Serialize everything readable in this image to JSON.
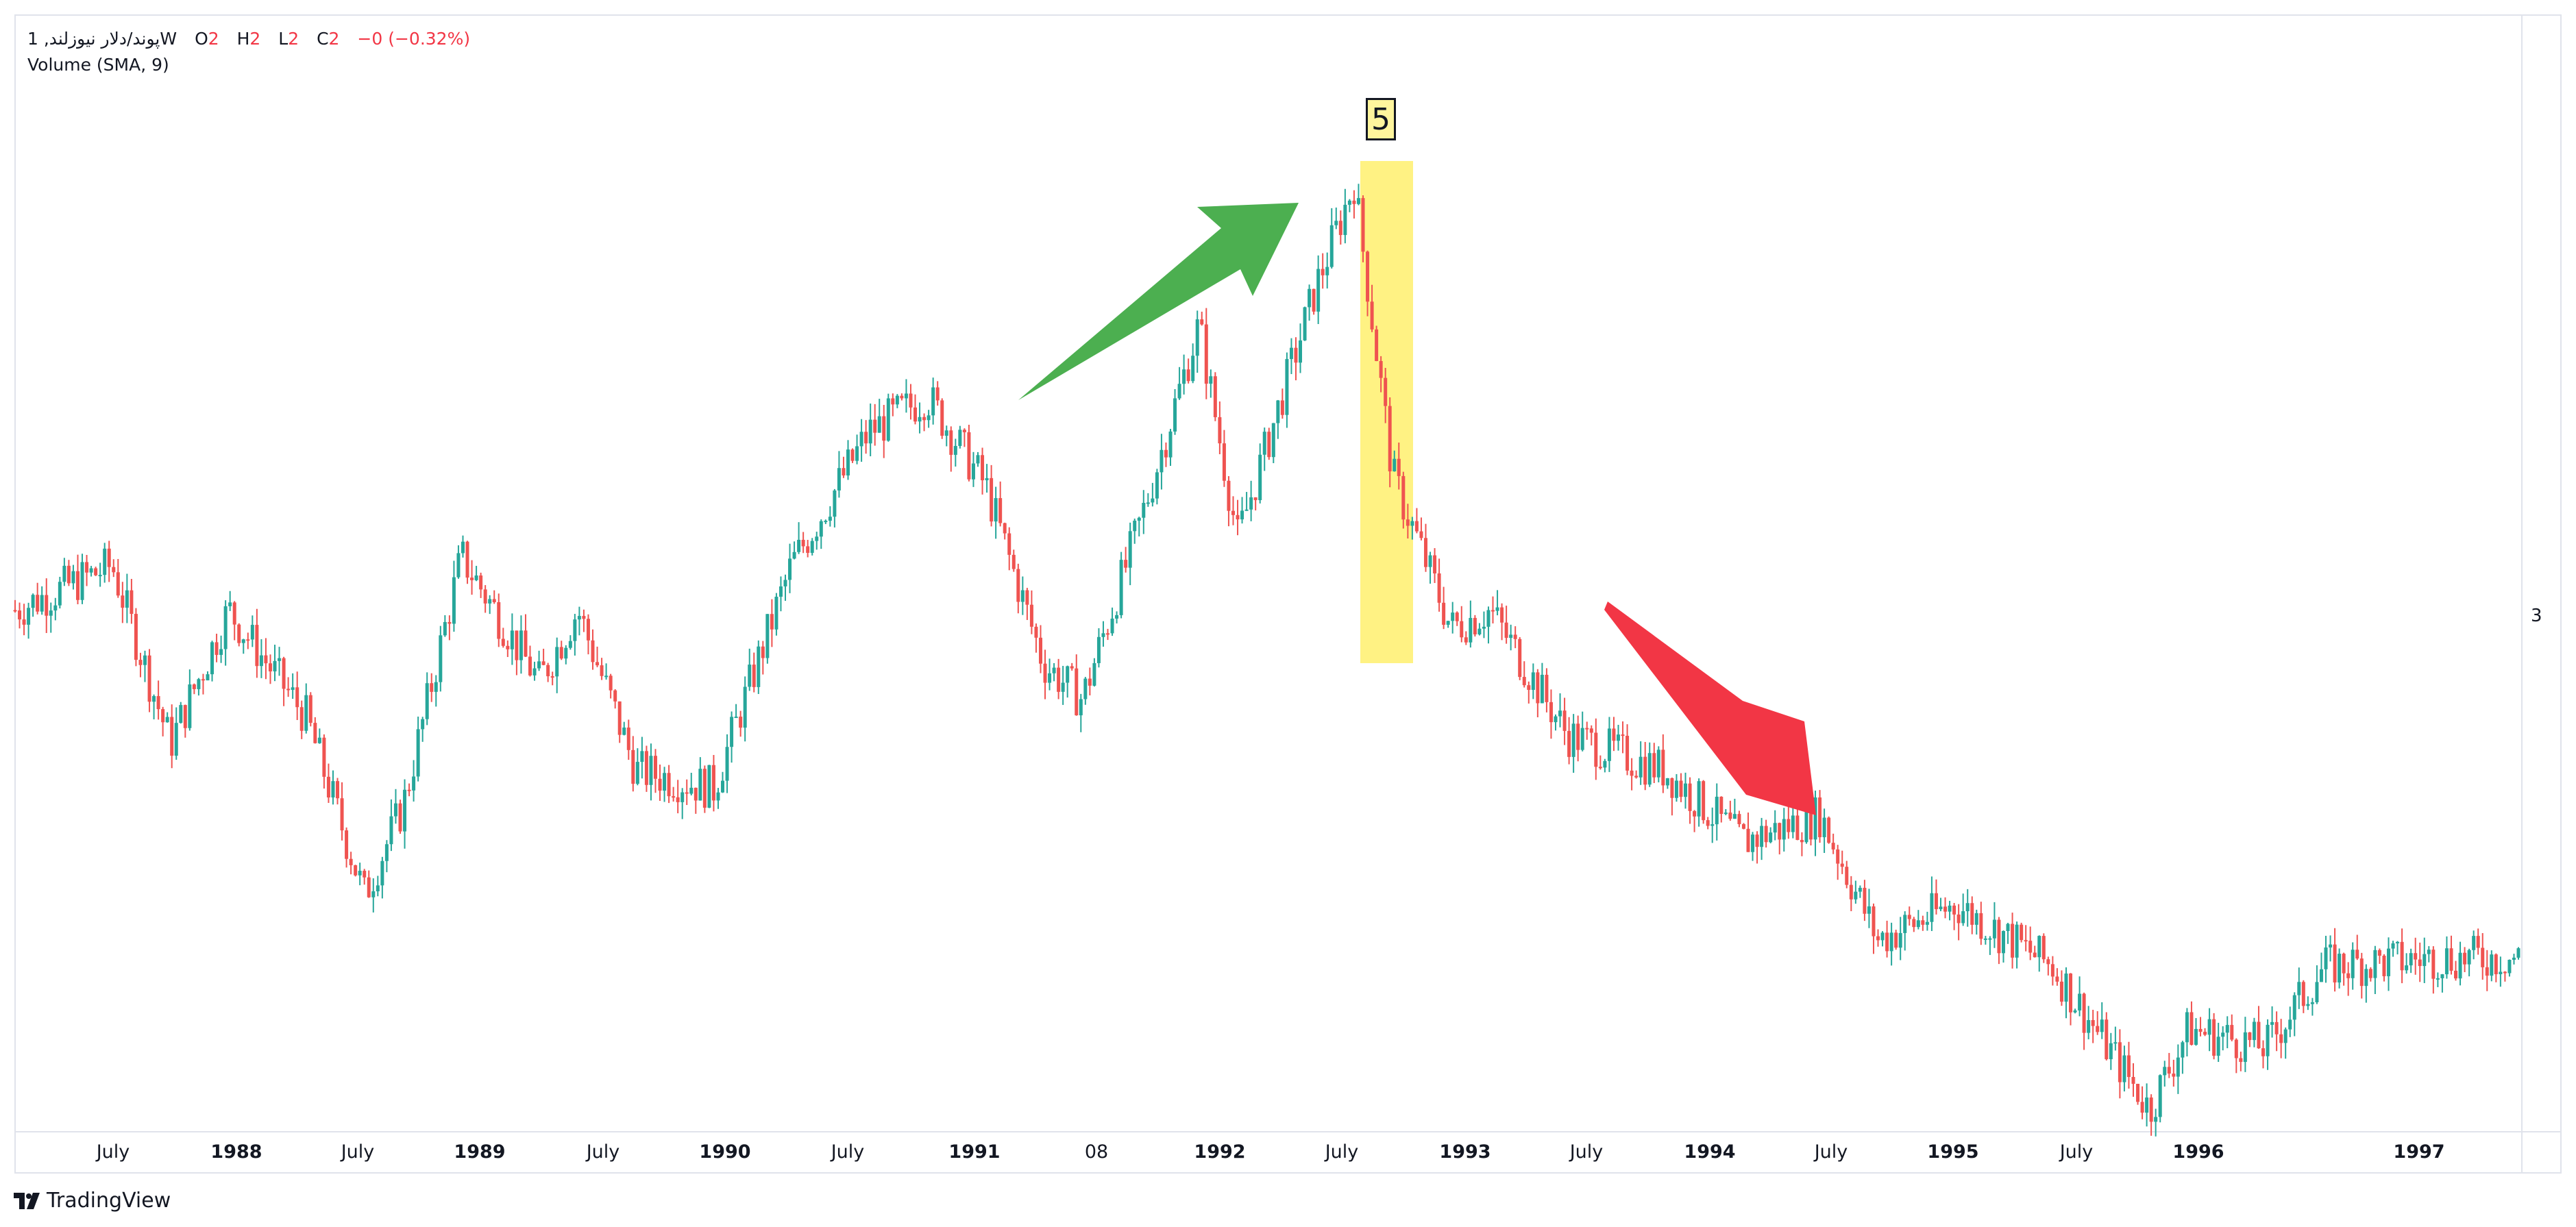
{
  "legend": {
    "symbol": "پوند/دلار نیوزلند, 1W",
    "o_label": "O",
    "o_value": "2",
    "h_label": "H",
    "h_value": "2",
    "l_label": "L",
    "l_value": "2",
    "c_label": "C",
    "c_value": "2",
    "change": "−0 (−0.32%)",
    "indicator": "Volume (SMA, 9)"
  },
  "price_axis_label": "3",
  "badge_text": "5",
  "watermark": "TradingView",
  "colors": {
    "up": "#26a69a",
    "down": "#ef5350",
    "highlight": "#fff176",
    "arrow_up": "#4caf50",
    "arrow_down": "#f23645"
  },
  "chart_data": {
    "type": "candlestick",
    "timeframe": "1W",
    "x_range": [
      "1987",
      "1997"
    ],
    "x_tick_labels": [
      "July",
      "1988",
      "July",
      "1989",
      "July",
      "1990",
      "July",
      "1991",
      "08",
      "1992",
      "July",
      "1993",
      "July",
      "1994",
      "July",
      "1995",
      "July",
      "1996",
      "1997"
    ],
    "price_path": [
      {
        "t": "1987-01",
        "close": 0.5
      },
      {
        "t": "1987-06",
        "close": 0.55
      },
      {
        "t": "1987-09",
        "close": 0.35
      },
      {
        "t": "1987-12",
        "close": 0.5
      },
      {
        "t": "1988-04",
        "close": 0.38
      },
      {
        "t": "1988-07",
        "close": 0.18
      },
      {
        "t": "1988-09",
        "close": 0.28
      },
      {
        "t": "1988-12",
        "close": 0.56
      },
      {
        "t": "1989-04",
        "close": 0.42
      },
      {
        "t": "1989-06",
        "close": 0.5
      },
      {
        "t": "1989-09",
        "close": 0.32
      },
      {
        "t": "1990-01",
        "close": 0.3
      },
      {
        "t": "1990-05",
        "close": 0.55
      },
      {
        "t": "1990-09",
        "close": 0.7
      },
      {
        "t": "1990-12",
        "close": 0.74
      },
      {
        "t": "1991-03",
        "close": 0.64
      },
      {
        "t": "1991-06",
        "close": 0.44
      },
      {
        "t": "1991-08",
        "close": 0.4
      },
      {
        "t": "1991-11",
        "close": 0.6
      },
      {
        "t": "1992-02",
        "close": 0.82
      },
      {
        "t": "1992-04",
        "close": 0.58
      },
      {
        "t": "1992-08",
        "close": 0.86
      },
      {
        "t": "1992-10",
        "close": 0.98
      },
      {
        "t": "1992-12",
        "close": 0.65
      },
      {
        "t": "1993-03",
        "close": 0.48
      },
      {
        "t": "1993-05",
        "close": 0.5
      },
      {
        "t": "1993-09",
        "close": 0.36
      },
      {
        "t": "1994-02",
        "close": 0.32
      },
      {
        "t": "1994-06",
        "close": 0.24
      },
      {
        "t": "1994-10",
        "close": 0.27
      },
      {
        "t": "1995-01",
        "close": 0.13
      },
      {
        "t": "1995-05",
        "close": 0.17
      },
      {
        "t": "1995-10",
        "close": 0.1
      },
      {
        "t": "1996-03",
        "close": -0.06
      },
      {
        "t": "1996-05",
        "close": 0.03
      },
      {
        "t": "1996-09",
        "close": 0.01
      },
      {
        "t": "1996-12",
        "close": 0.1
      },
      {
        "t": "1997-06",
        "close": 0.11
      }
    ],
    "annotations": [
      {
        "type": "arrow",
        "direction": "up",
        "from": "1991-01",
        "to": "1992-08",
        "color": "#4caf50"
      },
      {
        "type": "highlight",
        "from": "1992-08",
        "to": "1992-11",
        "color": "#fff176",
        "label": "5"
      },
      {
        "type": "arrow",
        "direction": "down",
        "from": "1993-06",
        "to": "1994-08",
        "color": "#f23645"
      }
    ]
  }
}
